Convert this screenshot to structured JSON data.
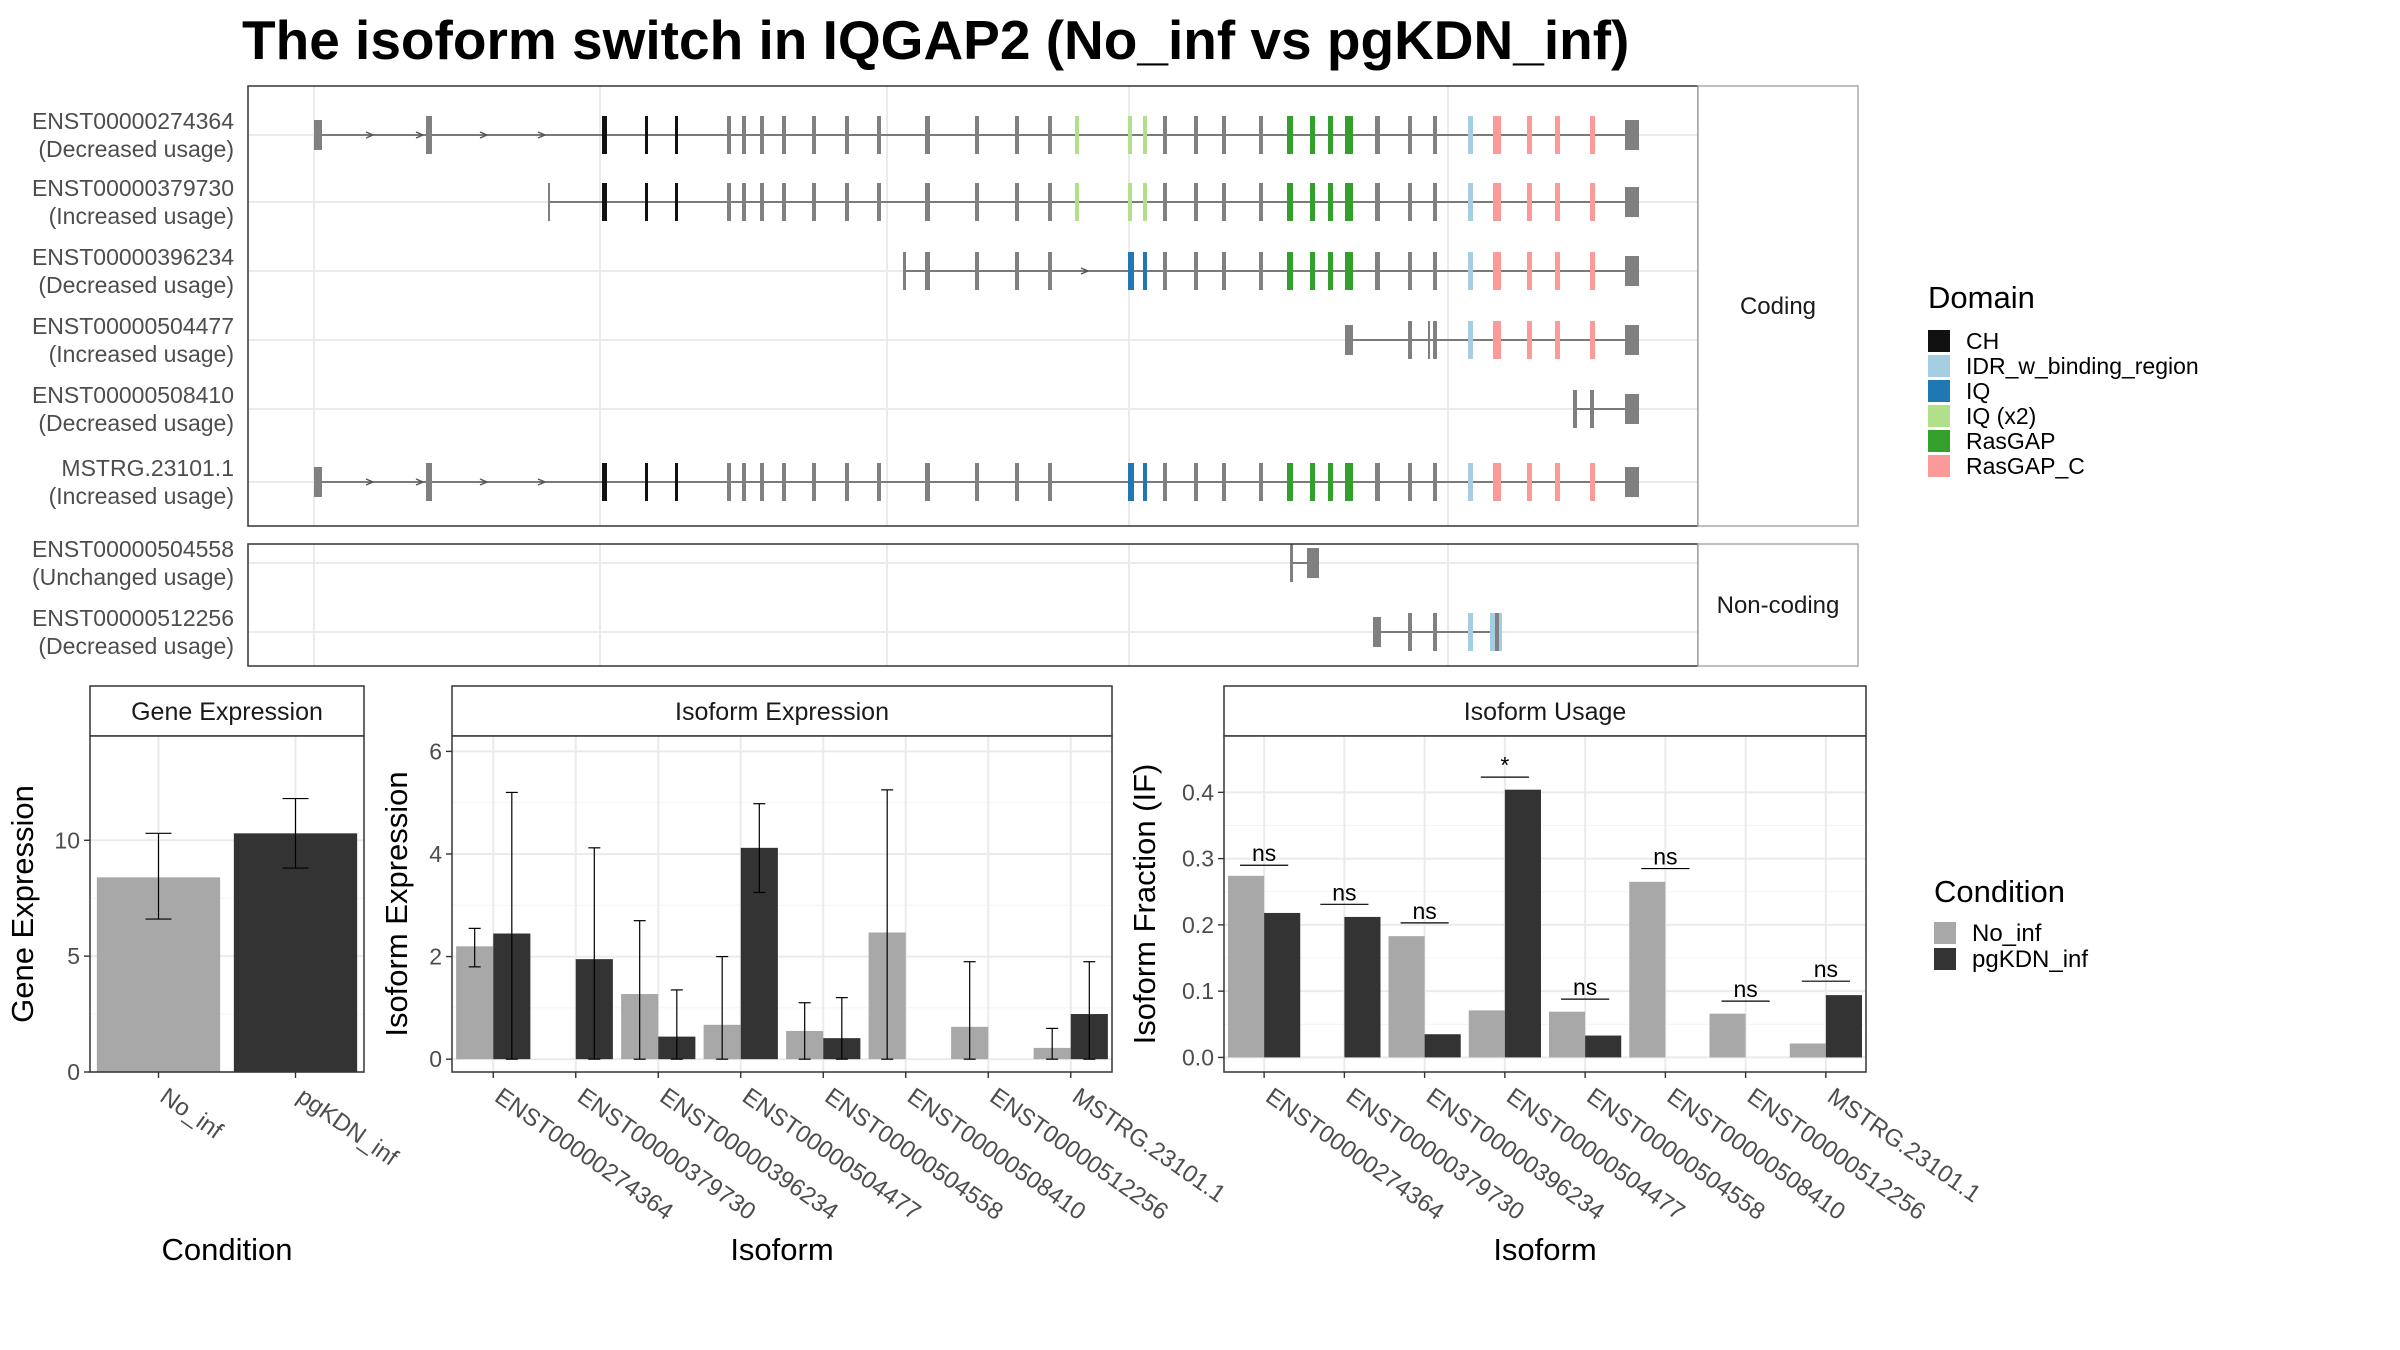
{
  "title": "The isoform switch in IQGAP2 (No_inf vs pgKDN_inf)",
  "colors": {
    "No_inf": "#a8a8a8",
    "pgKDN_inf": "#333333",
    "intron": "#555555",
    "exon": "#808080",
    "CH": "#111111",
    "IDR_w_binding_region": "#a6cee3",
    "IQ": "#1f78b4",
    "IQ (x2)": "#b2df8a",
    "RasGAP": "#33a02c",
    "RasGAP_C": "#fb9a99"
  },
  "domain_legend": {
    "title": "Domain",
    "items": [
      "CH",
      "IDR_w_binding_region",
      "IQ",
      "IQ (x2)",
      "RasGAP",
      "RasGAP_C"
    ]
  },
  "condition_legend": {
    "title": "Condition",
    "items": [
      "No_inf",
      "pgKDN_inf"
    ]
  },
  "transcript_panels": [
    {
      "strip": "Coding",
      "transcripts": [
        {
          "id": "ENST00000274364",
          "usage": "(Decreased usage)"
        },
        {
          "id": "ENST00000379730",
          "usage": "(Increased usage)"
        },
        {
          "id": "ENST00000396234",
          "usage": "(Decreased usage)"
        },
        {
          "id": "ENST00000504477",
          "usage": "(Increased usage)"
        },
        {
          "id": "ENST00000508410",
          "usage": "(Decreased usage)"
        },
        {
          "id": "MSTRG.23101.1",
          "usage": "(Increased usage)"
        }
      ]
    },
    {
      "strip": "Non-coding",
      "transcripts": [
        {
          "id": "ENST00000504558",
          "usage": "(Unchanged usage)"
        },
        {
          "id": "ENST00000512256",
          "usage": "(Decreased usage)"
        }
      ]
    }
  ],
  "chart_data": [
    {
      "type": "bar",
      "title": "Gene Expression",
      "xlabel": "Condition",
      "ylabel": "Gene Expression",
      "ylim": [
        0,
        14.5
      ],
      "yticks": [
        0,
        5,
        10
      ],
      "categories": [
        "No_inf",
        "pgKDN_inf"
      ],
      "values": [
        8.4,
        10.3
      ],
      "error_low": [
        6.6,
        8.8
      ],
      "error_high": [
        10.3,
        11.8
      ]
    },
    {
      "type": "bar",
      "title": "Isoform Expression",
      "xlabel": "Isoform",
      "ylabel": "Isoform Expression",
      "ylim": [
        -0.25,
        6.3
      ],
      "yticks": [
        0,
        2,
        4,
        6
      ],
      "categories": [
        "ENST00000274364",
        "ENST00000379730",
        "ENST00000396234",
        "ENST00000504477",
        "ENST00000504558",
        "ENST00000508410",
        "ENST00000512256",
        "MSTRG.23101.1"
      ],
      "series": [
        {
          "name": "No_inf",
          "values": [
            2.2,
            0.0,
            1.27,
            0.67,
            0.55,
            2.47,
            0.63,
            0.22
          ],
          "error_low": [
            1.8,
            0.0,
            0.0,
            0.0,
            0.0,
            0.0,
            0.0,
            0.0
          ],
          "error_high": [
            2.55,
            0.0,
            2.7,
            2.0,
            1.1,
            5.25,
            1.9,
            0.6
          ]
        },
        {
          "name": "pgKDN_inf",
          "values": [
            2.45,
            1.95,
            0.44,
            4.12,
            0.41,
            0.0,
            0.0,
            0.88
          ],
          "error_low": [
            0.0,
            0.0,
            0.0,
            3.25,
            0.0,
            0.0,
            0.0,
            0.0
          ],
          "error_high": [
            5.2,
            4.12,
            1.35,
            4.98,
            1.2,
            0.0,
            0.0,
            1.9
          ]
        }
      ]
    },
    {
      "type": "bar",
      "title": "Isoform Usage",
      "xlabel": "Isoform",
      "ylabel": "Isoform Fraction (IF)",
      "ylim": [
        -0.022,
        0.485
      ],
      "yticks": [
        0.0,
        0.1,
        0.2,
        0.3,
        0.4
      ],
      "ytick_labels": [
        "0.0",
        "0.1",
        "0.2",
        "0.3",
        "0.4"
      ],
      "categories": [
        "ENST00000274364",
        "ENST00000379730",
        "ENST00000396234",
        "ENST00000504477",
        "ENST00000504558",
        "ENST00000508410",
        "ENST00000512256",
        "MSTRG.23101.1"
      ],
      "series": [
        {
          "name": "No_inf",
          "values": [
            0.274,
            0.0,
            0.183,
            0.071,
            0.069,
            0.265,
            0.066,
            0.021
          ]
        },
        {
          "name": "pgKDN_inf",
          "values": [
            0.218,
            0.212,
            0.035,
            0.404,
            0.033,
            0.0,
            0.0,
            0.094
          ]
        }
      ],
      "significance": [
        "ns",
        "ns",
        "ns",
        "*",
        "ns",
        "ns",
        "ns",
        "ns"
      ],
      "significance_y": [
        0.29,
        0.231,
        0.203,
        0.423,
        0.088,
        0.285,
        0.085,
        0.115
      ]
    }
  ]
}
